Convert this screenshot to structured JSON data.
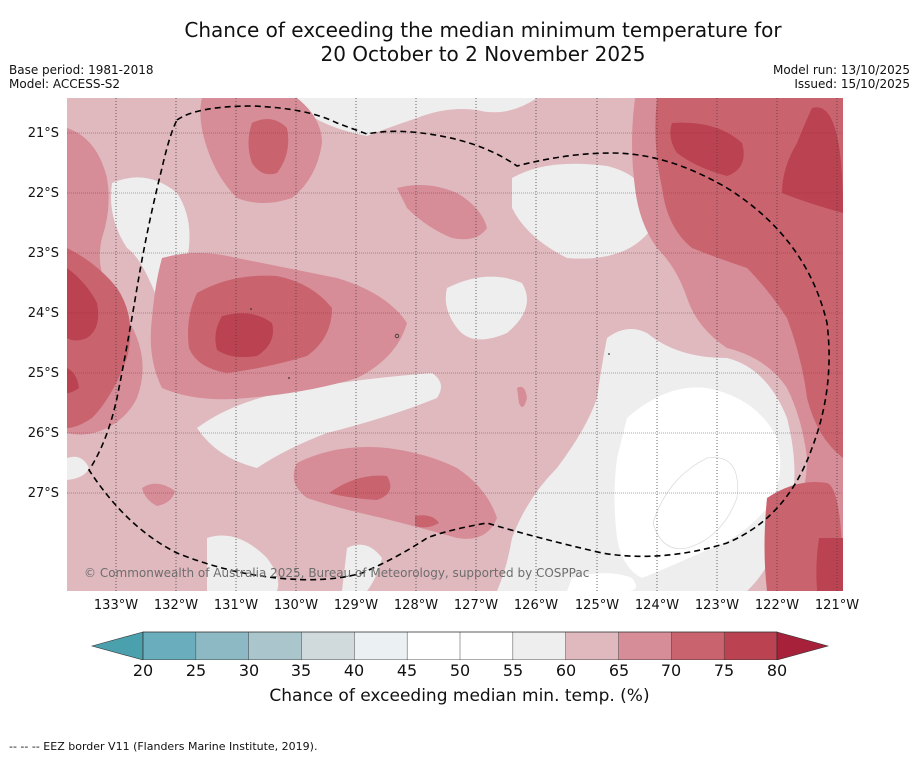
{
  "header": {
    "title_line1": "Chance of exceeding the median minimum temperature for",
    "title_line2": "20 October to 2 November 2025",
    "base_period": "Base period: 1981-2018",
    "model": "Model: ACCESS-S2",
    "model_run": "Model run: 13/10/2025",
    "issued": "Issued: 15/10/2025"
  },
  "map": {
    "lat_labels": [
      "21°S",
      "22°S",
      "23°S",
      "24°S",
      "25°S",
      "26°S",
      "27°S"
    ],
    "lon_labels": [
      "133°W",
      "132°W",
      "131°W",
      "130°W",
      "129°W",
      "128°W",
      "127°W",
      "126°W",
      "125°W",
      "124°W",
      "123°W",
      "122°W",
      "121°W"
    ],
    "copyright": "© Commonwealth of Australia 2025, Bureau of Meteorology, supported by COSPPac"
  },
  "colorbar": {
    "ticks": [
      "20",
      "25",
      "30",
      "35",
      "40",
      "45",
      "50",
      "55",
      "60",
      "65",
      "70",
      "75",
      "80"
    ],
    "colors": [
      "#6aaebd",
      "#8cb9c4",
      "#aac6cc",
      "#d0dadc",
      "#ebf0f2",
      "#ffffff",
      "#ffffff",
      "#eeeeee",
      "#e0b9bf",
      "#d68d97",
      "#c9646f",
      "#bb4250"
    ],
    "under_color": "#4aa0ad",
    "over_color": "#a8213a",
    "label": "Chance of exceeding median min. temp. (%)"
  },
  "footnote": "--  --  -- EEZ border V11 (Flanders Marine Institute, 2019)."
}
